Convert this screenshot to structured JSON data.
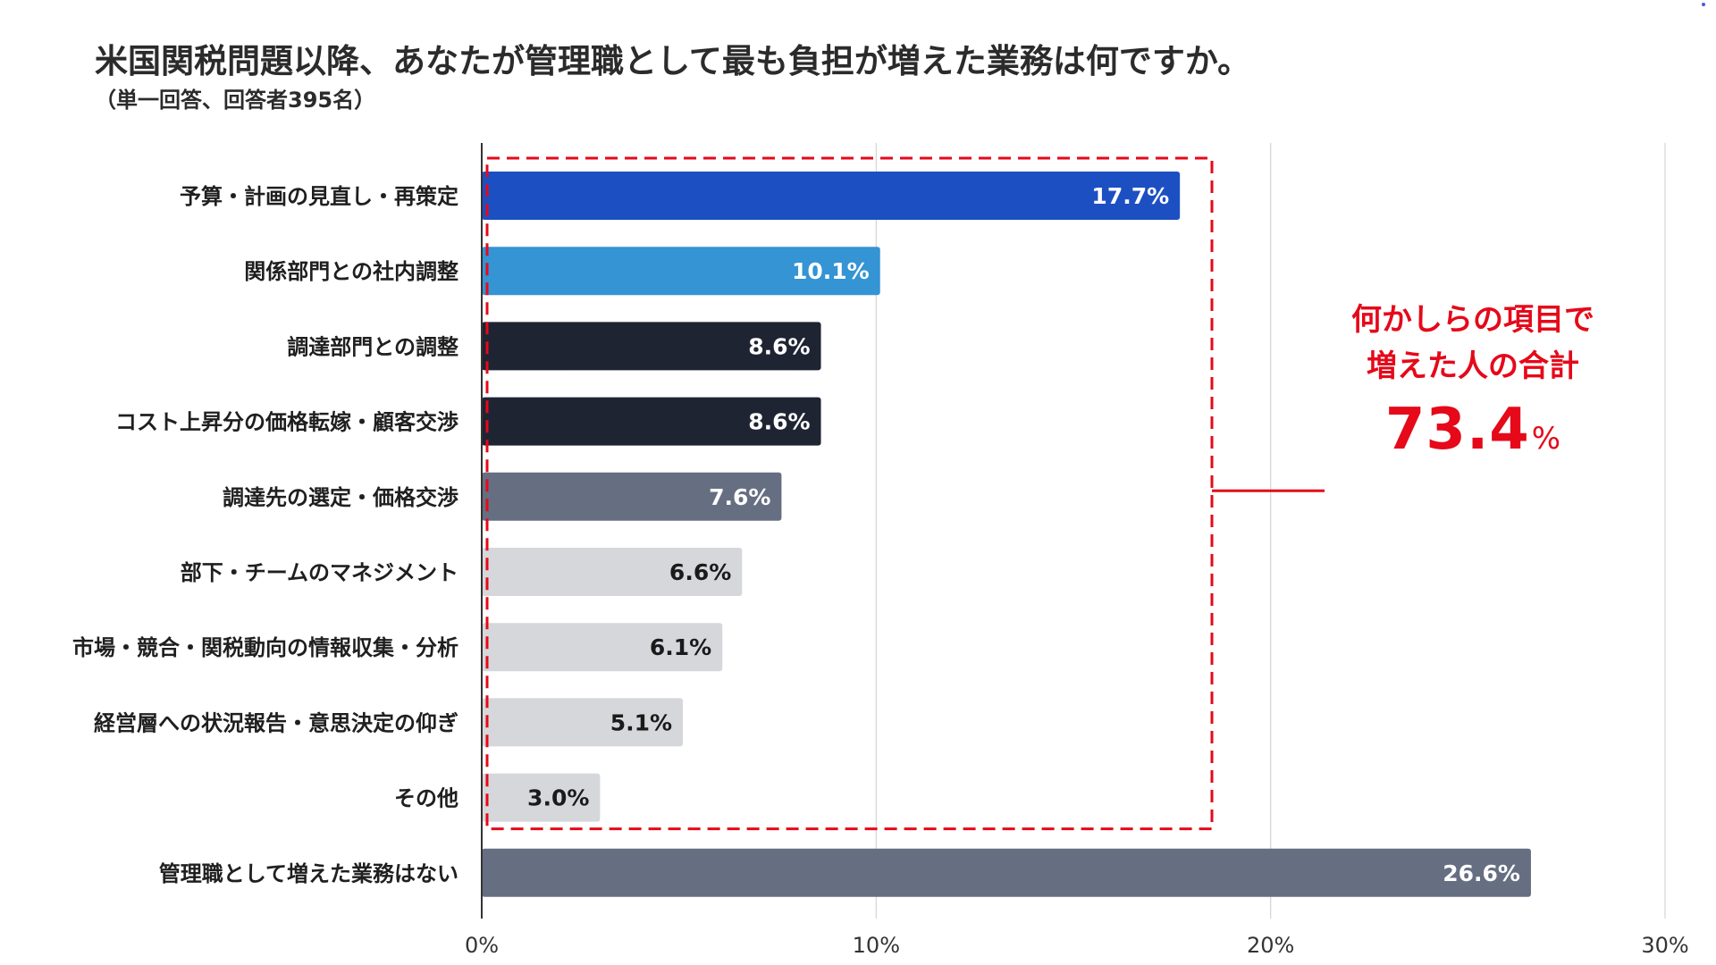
{
  "chart_data": {
    "type": "bar",
    "orientation": "horizontal",
    "title": "米国関税問題以降、あなたが管理職として最も負担が増えた業務は何ですか。",
    "subtitle": "（単一回答、回答者395名）",
    "categories": [
      "予算・計画の見直し・再策定",
      "関係部門との社内調整",
      "調達部門との調整",
      "コスト上昇分の価格転嫁・顧客交渉",
      "調達先の選定・価格交渉",
      "部下・チームのマネジメント",
      "市場・競合・関税動向の情報収集・分析",
      "経営層への状況報告・意思決定の仰ぎ",
      "その他",
      "管理職として増えた業務はない"
    ],
    "values": [
      17.7,
      10.1,
      8.6,
      8.6,
      7.6,
      6.6,
      6.1,
      5.1,
      3.0,
      26.6
    ],
    "value_labels": [
      "17.7%",
      "10.1%",
      "8.6%",
      "8.6%",
      "7.6%",
      "6.6%",
      "6.1%",
      "5.1%",
      "3.0%",
      "26.6%"
    ],
    "bar_colors": [
      "#1c4fc2",
      "#3494d4",
      "#1f2433",
      "#1f2433",
      "#666e82",
      "#d6d7db",
      "#d6d7db",
      "#d6d7db",
      "#d6d7db",
      "#666e82"
    ],
    "label_colors": [
      "#ffffff",
      "#ffffff",
      "#ffffff",
      "#ffffff",
      "#ffffff",
      "#1a1a1a",
      "#1a1a1a",
      "#1a1a1a",
      "#1a1a1a",
      "#ffffff"
    ],
    "xlim": [
      0,
      30
    ],
    "xticks": [
      0,
      10,
      20,
      30
    ],
    "xtick_labels": [
      "0%",
      "10%",
      "20%",
      "30%"
    ],
    "grid": true,
    "highlight_group": {
      "first_category": 0,
      "last_category": 8,
      "color": "#e5091a",
      "label_line1": "何かしらの項目で",
      "label_line2": "増えた人の合計",
      "total_value": "73.4",
      "total_unit": "%"
    }
  }
}
